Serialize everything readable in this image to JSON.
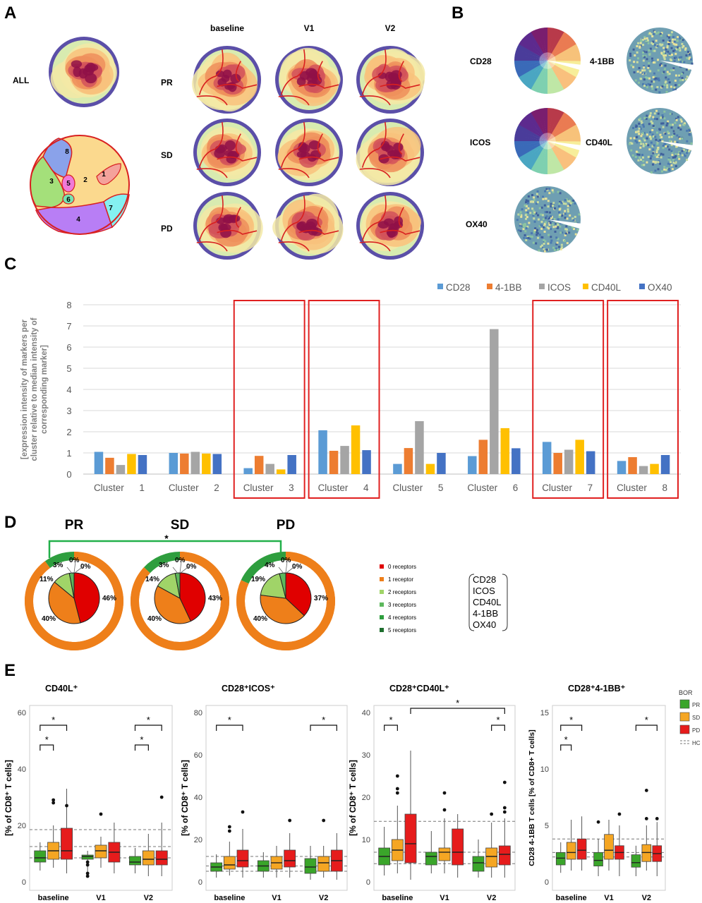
{
  "panel_letters": {
    "a": "A",
    "b": "B",
    "c": "C",
    "d": "D",
    "e": "E"
  },
  "panel_a": {
    "all_label": "ALL",
    "columns": [
      "baseline",
      "V1",
      "V2"
    ],
    "rows": [
      "PR",
      "SD",
      "PD"
    ],
    "cluster_numbers": [
      "1",
      "2",
      "3",
      "4",
      "5",
      "6",
      "7",
      "8"
    ],
    "colors": {
      "cluster_1": "#f4a29b",
      "cluster_2": "#fbd98e",
      "cluster_3": "#a4e07a",
      "cluster_4": "#b87ef5",
      "cluster_5": "#f07ad8",
      "cluster_6": "#76e3b0",
      "cluster_7": "#84f0f0",
      "cluster_8": "#8aa2ea",
      "density_ring": "#5b4fa8",
      "density_low": "#d8ebb0",
      "density_high": "#8f1048",
      "cluster_outline": "#d82020"
    }
  },
  "panel_b": {
    "markers": [
      "CD28",
      "4-1BB",
      "ICOS",
      "CD40L",
      "OX40"
    ]
  },
  "chart_data": [
    {
      "panel": "C",
      "type": "bar",
      "ylabel": "[expression intensity of markers per cluster relative to median intensity of corresponding marker]",
      "ylim": [
        0,
        8
      ],
      "yticks": [
        0,
        1,
        2,
        3,
        4,
        5,
        6,
        7,
        8
      ],
      "grid": true,
      "legend": "top-right",
      "categories": [
        "Cluster 1",
        "Cluster 2",
        "Cluster 3",
        "Cluster 4",
        "Cluster 5",
        "Cluster 6",
        "Cluster 7",
        "Cluster 8"
      ],
      "highlighted": [
        "Cluster 3",
        "Cluster 4",
        "Cluster 7",
        "Cluster 8"
      ],
      "highlight_color": "#e02020",
      "series": [
        {
          "name": "CD28",
          "color": "#5b9bd5",
          "values": [
            1.05,
            1.0,
            0.28,
            2.07,
            0.48,
            0.85,
            1.52,
            0.62
          ]
        },
        {
          "name": "4-1BB",
          "color": "#ed7d31",
          "values": [
            0.77,
            0.97,
            0.86,
            1.1,
            1.23,
            1.62,
            1.0,
            0.8
          ]
        },
        {
          "name": "ICOS",
          "color": "#a5a5a5",
          "values": [
            0.43,
            1.05,
            0.48,
            1.33,
            2.5,
            6.85,
            1.15,
            0.38
          ]
        },
        {
          "name": "CD40L",
          "color": "#ffc000",
          "values": [
            0.95,
            0.97,
            0.22,
            2.3,
            0.48,
            2.17,
            1.62,
            0.48
          ]
        },
        {
          "name": "OX40",
          "color": "#4472c4",
          "values": [
            0.9,
            0.95,
            0.9,
            1.13,
            1.0,
            1.22,
            1.08,
            0.9
          ]
        }
      ]
    },
    {
      "panel": "D",
      "type": "pie",
      "groups": [
        "PR",
        "SD",
        "PD"
      ],
      "significance": "*",
      "legend": "right",
      "categories": [
        "0 receptors",
        "1 receptor",
        "2 receptors",
        "3 receptors",
        "4 receptors",
        "5 receptors"
      ],
      "colors": [
        "#e00000",
        "#ee7f1a",
        "#a0d468",
        "#5cb85c",
        "#2e9e3e",
        "#1e6e2e"
      ],
      "series": [
        {
          "name": "PR",
          "values": [
            46,
            40,
            11,
            3,
            0,
            0
          ],
          "labels": [
            "46%",
            "40%",
            "11%",
            "3%",
            "0%",
            "0%"
          ],
          "outer_ring_green": 10
        },
        {
          "name": "SD",
          "values": [
            43,
            40,
            14,
            3,
            0,
            0
          ],
          "labels": [
            "43%",
            "40%",
            "14%",
            "3%",
            "0%",
            "0%"
          ],
          "outer_ring_green": 13
        },
        {
          "name": "PD",
          "values": [
            37,
            40,
            19,
            4,
            0,
            0
          ],
          "labels": [
            "37%",
            "40%",
            "19%",
            "4%",
            "0%",
            "0%"
          ],
          "outer_ring_green": 18
        }
      ],
      "receptor_list": [
        "CD28",
        "ICOS",
        "CD40L",
        "4-1BB",
        "OX40"
      ]
    },
    {
      "panel": "E",
      "type": "box",
      "legend": {
        "title": "BOR",
        "entries": [
          "PR",
          "SD",
          "PD",
          "HC"
        ],
        "colors": [
          "#3aa52a",
          "#f5a623",
          "#e61c1c",
          "#888888"
        ]
      },
      "xlabels": [
        "baseline",
        "V1",
        "V2"
      ],
      "plots": [
        {
          "title": "CD40L⁺",
          "ylabel": "[% of CD8⁺ T cells]",
          "ylim": [
            0,
            60
          ],
          "yticks": [
            0,
            20,
            40,
            60
          ],
          "hc_lines": [
            18.5,
            12.5,
            8.5
          ],
          "boxes": [
            [
              [
                4,
                7,
                8.5,
                11,
                14
              ],
              [
                5,
                8,
                11,
                14,
                20
              ],
              [
                3,
                8,
                11,
                19,
                33
              ]
            ],
            [
              [
                3,
                8,
                9,
                9.5,
                11
              ],
              [
                5,
                8.5,
                11,
                13,
                16
              ],
              [
                3,
                7,
                10.5,
                14,
                21
              ]
            ],
            [
              [
                3,
                6,
                7,
                9,
                12
              ],
              [
                2,
                6,
                8,
                11,
                17
              ],
              [
                2,
                6,
                8,
                11,
                21
              ]
            ]
          ],
          "outliers": [
            [
              [],
              [
                28,
                29
              ],
              [
                27
              ]
            ],
            [
              [
                7,
                6,
                3,
                2
              ],
              [
                24
              ],
              []
            ],
            [
              [],
              [],
              [
                30
              ]
            ]
          ],
          "brackets": [
            {
              "group": 0,
              "from": 0,
              "to": 1,
              "level": 1,
              "label": "*"
            },
            {
              "group": 0,
              "from": 0,
              "to": 2,
              "level": 2,
              "label": "*"
            },
            {
              "group": 2,
              "from": 0,
              "to": 1,
              "level": 1,
              "label": "*"
            },
            {
              "group": 2,
              "from": 0,
              "to": 2,
              "level": 2,
              "label": "*"
            }
          ]
        },
        {
          "title": "CD28⁺ICOS⁺",
          "ylabel": "[% of CD8⁺ T cells]",
          "ylim": [
            0,
            80
          ],
          "yticks": [
            0,
            20,
            40,
            60,
            80
          ],
          "hc_lines": [
            12,
            7.5,
            5
          ],
          "boxes": [
            [
              [
                2,
                5,
                7,
                9,
                13
              ],
              [
                3,
                6,
                8,
                12,
                19
              ],
              [
                2,
                7,
                10,
                15,
                25
              ]
            ],
            [
              [
                2,
                5,
                7.5,
                10,
                14
              ],
              [
                2,
                6,
                9,
                12,
                17
              ],
              [
                2,
                7,
                10,
                15,
                23
              ]
            ],
            [
              [
                1,
                4,
                7,
                11,
                17
              ],
              [
                2,
                5,
                9,
                12,
                17
              ],
              [
                1,
                5,
                10,
                15,
                23
              ]
            ]
          ],
          "outliers": [
            [
              [],
              [
                24,
                26
              ],
              [
                33
              ]
            ],
            [
              [],
              [],
              [
                29
              ]
            ],
            [
              [],
              [
                29
              ],
              []
            ]
          ],
          "brackets": [
            {
              "group": 0,
              "from": 0,
              "to": 2,
              "level": 2,
              "label": "*"
            },
            {
              "group": 2,
              "from": 0,
              "to": 2,
              "level": 2,
              "label": "*"
            }
          ]
        },
        {
          "title": "CD28⁺CD40L⁺",
          "ylabel": "[% of CD8⁺ T cells]",
          "ylim": [
            0,
            40
          ],
          "yticks": [
            0,
            10,
            20,
            30,
            40
          ],
          "hc_lines": [
            14.3,
            7,
            4.3
          ],
          "boxes": [
            [
              [
                1.5,
                4,
                6,
                8,
                13
              ],
              [
                2,
                5,
                7.5,
                10,
                18
              ],
              [
                0.5,
                4.5,
                9,
                16,
                31
              ]
            ],
            [
              [
                2,
                4,
                6,
                7,
                12
              ],
              [
                2,
                5,
                7,
                8,
                15
              ],
              [
                1,
                4,
                7,
                12.5,
                16
              ]
            ],
            [
              [
                1,
                2.5,
                4.5,
                6,
                10
              ],
              [
                1,
                3.5,
                6,
                8,
                14
              ],
              [
                1,
                4,
                6.5,
                8.5,
                15
              ]
            ]
          ],
          "outliers": [
            [
              [],
              [
                25,
                22,
                21
              ],
              []
            ],
            [
              [],
              [
                21,
                17
              ],
              []
            ],
            [
              [],
              [
                16
              ],
              [
                23.5,
                17.5,
                16.5
              ]
            ]
          ],
          "brackets": [
            {
              "group": 0,
              "from": 0,
              "to": 1,
              "level": 2,
              "label": "*"
            },
            {
              "group": 2,
              "from": 1,
              "to": 2,
              "level": 2,
              "label": "*"
            }
          ],
          "cross_bracket": {
            "from_group": 0,
            "to_group": 2,
            "series": 2,
            "label": "*"
          }
        },
        {
          "title": "CD28⁺4-1BB⁺",
          "ylabel": "CD28 4-1BB T cells [% of CD8+ T cells]",
          "ylim": [
            0,
            15
          ],
          "yticks": [
            0,
            5,
            10,
            15
          ],
          "hc_lines": [
            3.8,
            2.6,
            2.2
          ],
          "boxes": [
            [
              [
                0.8,
                1.5,
                2.1,
                2.6,
                3.5
              ],
              [
                1,
                2,
                2.6,
                3.5,
                5.5
              ],
              [
                1,
                2,
                2.8,
                3.8,
                5.8
              ]
            ],
            [
              [
                0.5,
                1.4,
                1.9,
                2.6,
                3.8
              ],
              [
                1,
                2,
                2.8,
                4.2,
                5.5
              ],
              [
                0.5,
                2,
                2.6,
                3.2,
                5
              ]
            ],
            [
              [
                0.5,
                1.3,
                1.7,
                2.4,
                3.2
              ],
              [
                1,
                1.8,
                2.6,
                3.3,
                5
              ],
              [
                0.5,
                1.8,
                2.5,
                3.2,
                5.3
              ]
            ]
          ],
          "outliers": [
            [
              [],
              [],
              []
            ],
            [
              [
                5.3
              ],
              [],
              [
                6
              ]
            ],
            [
              [],
              [
                8.1,
                5.6
              ],
              [
                5.6
              ]
            ]
          ],
          "brackets": [
            {
              "group": 0,
              "from": 0,
              "to": 1,
              "level": 1,
              "label": "*"
            },
            {
              "group": 0,
              "from": 0,
              "to": 2,
              "level": 2,
              "label": "*"
            },
            {
              "group": 2,
              "from": 0,
              "to": 2,
              "level": 2,
              "label": "*"
            }
          ]
        }
      ]
    }
  ]
}
